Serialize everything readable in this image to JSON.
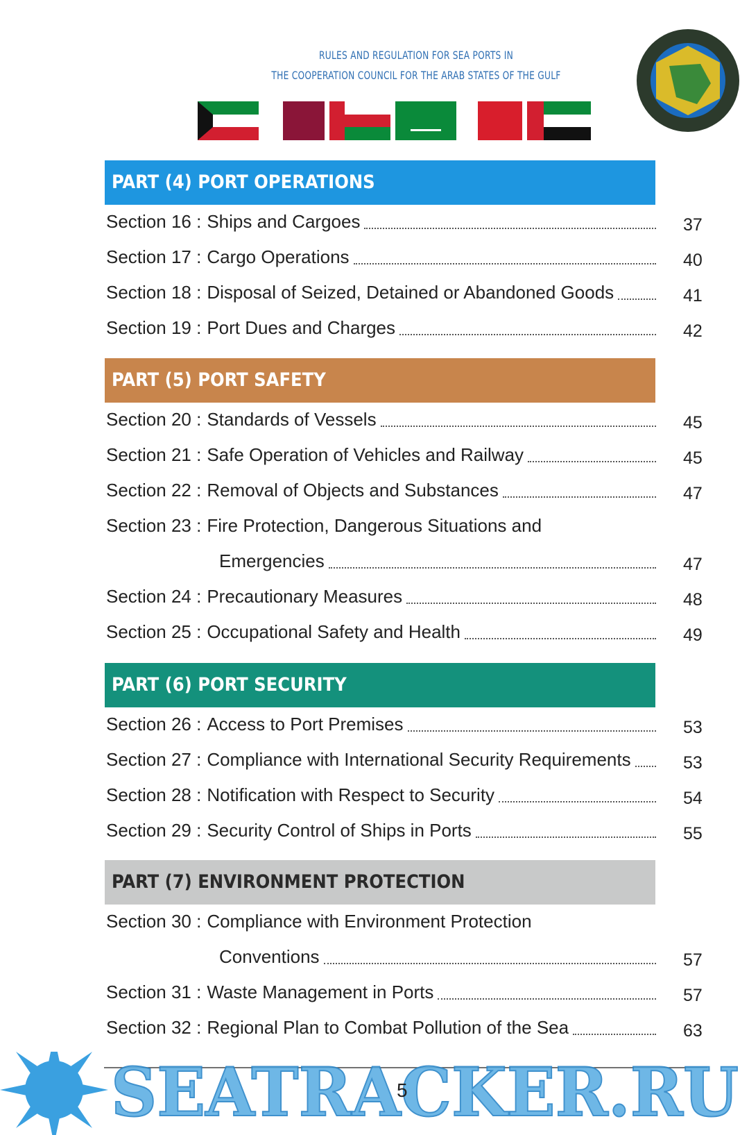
{
  "header": {
    "lines": [
      "RULES AND REGULATION FOR SEA PORTS IN",
      "THE COOPERATION COUNCIL FOR THE ARAB STATES OF THE GULF"
    ]
  },
  "parts": [
    {
      "title": "PART (4) PORT OPERATIONS",
      "sections": [
        {
          "label": "Section 16 :",
          "title": [
            "Ships and Cargoes"
          ],
          "page": 37
        },
        {
          "label": "Section 17 :",
          "title": [
            "Cargo Operations"
          ],
          "page": 40
        },
        {
          "label": "Section 18 :",
          "title": [
            "Disposal of Seized, Detained or Abandoned Goods"
          ],
          "page": 41
        },
        {
          "label": "Section 19 :",
          "title": [
            "Port Dues and Charges"
          ],
          "page": 42
        }
      ]
    },
    {
      "title": "PART (5) PORT SAFETY",
      "sections": [
        {
          "label": "Section 20 :",
          "title": [
            "Standards of Vessels"
          ],
          "page": 45
        },
        {
          "label": "Section 21 :",
          "title": [
            "Safe Operation of Vehicles and Railway"
          ],
          "page": 45
        },
        {
          "label": "Section 22 :",
          "title": [
            "Removal of Objects and Substances"
          ],
          "page": 47
        },
        {
          "label": "Section 23 :",
          "title": [
            "Fire Protection, Dangerous Situations and",
            "Emergencies"
          ],
          "page": 47
        },
        {
          "label": "Section 24 :",
          "title": [
            "Precautionary Measures"
          ],
          "page": 48
        },
        {
          "label": "Section 25 :",
          "title": [
            "Occupational Safety and Health"
          ],
          "page": 49
        }
      ]
    },
    {
      "title": "PART (6) PORT SECURITY",
      "sections": [
        {
          "label": "Section 26 :",
          "title": [
            "Access to Port Premises"
          ],
          "page": 53
        },
        {
          "label": "Section 27 :",
          "title": [
            "Compliance with International Security Requirements"
          ],
          "page": 53
        },
        {
          "label": "Section 28 :",
          "title": [
            "Notification with Respect to Security"
          ],
          "page": 54
        },
        {
          "label": "Section 29 :",
          "title": [
            "Security Control of Ships in Ports"
          ],
          "page": 55
        }
      ]
    },
    {
      "title": "PART (7) ENVIRONMENT PROTECTION",
      "sections": [
        {
          "label": "Section 30 :",
          "title": [
            "Compliance with Environment Protection",
            "Conventions"
          ],
          "page": 57
        },
        {
          "label": "Section 31 :",
          "title": [
            "Waste Management in Ports"
          ],
          "page": 57
        },
        {
          "label": "Section 32 :",
          "title": [
            "Regional Plan to Combat Pollution of the Sea"
          ],
          "page": 63
        }
      ]
    }
  ],
  "page_number": 5,
  "watermark": "SEATRACKER.RU"
}
